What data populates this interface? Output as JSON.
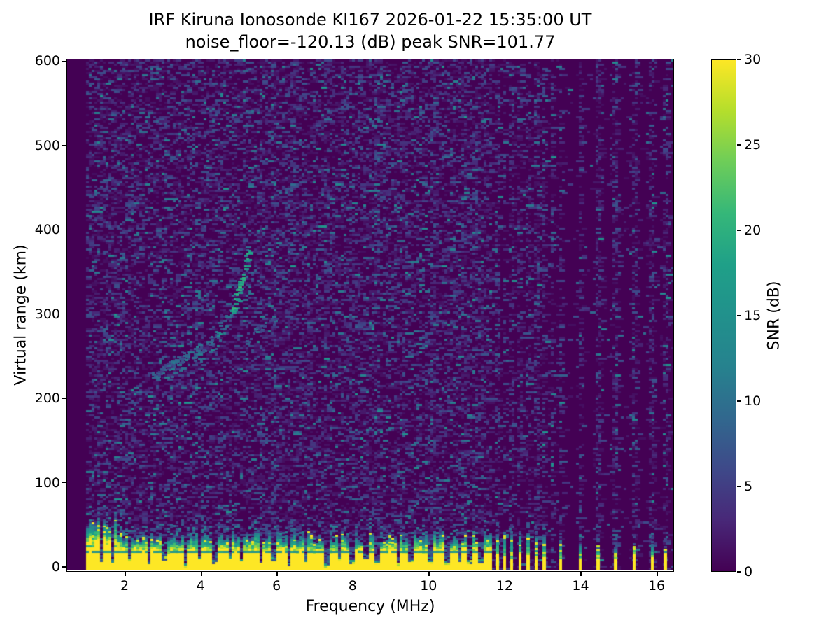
{
  "chart_data": {
    "type": "heatmap",
    "title": "IRF Kiruna Ionosonde KI167 2026-01-22 15:35:00  UT",
    "subtitle": "noise_floor=-120.13 (dB) peak SNR=101.77",
    "station": "KI167",
    "timestamp_ut": "2026-01-22 15:35:00",
    "noise_floor_db": -120.13,
    "peak_snr_db": 101.77,
    "xlabel": "Frequency (MHz)",
    "ylabel": "Virtual range (km)",
    "xlim": [
      0.49,
      16.44
    ],
    "ylim": [
      -4,
      602
    ],
    "xticks": [
      2,
      4,
      6,
      8,
      10,
      12,
      14,
      16
    ],
    "yticks": [
      0,
      100,
      200,
      300,
      400,
      500,
      600
    ],
    "grid": false,
    "colorbar": {
      "label": "SNR (dB)",
      "ticks": [
        0,
        5,
        10,
        15,
        20,
        25,
        30
      ],
      "vmin": 0,
      "vmax": 30,
      "colormap": "viridis",
      "position": "right"
    },
    "viridis_stops": [
      "#440154",
      "#482878",
      "#3e4989",
      "#31688e",
      "#26828e",
      "#21918c",
      "#1fa088",
      "#35b779",
      "#6dcd59",
      "#b4de2c",
      "#fde725"
    ],
    "features": {
      "data_start_mhz": 1.0,
      "ground_clutter_band": {
        "freq_range_mhz": [
          1.0,
          11.66
        ],
        "solid_top_km": 20,
        "transition_top_km": 34,
        "tall_left_until_mhz": 1.75,
        "teal_line_km": 19,
        "green_line_km": 26
      },
      "echo_trace_main": [
        [
          2.72,
          226
        ],
        [
          2.85,
          230
        ],
        [
          3.0,
          235
        ],
        [
          3.15,
          240
        ],
        [
          3.3,
          244
        ],
        [
          3.45,
          248
        ],
        [
          3.6,
          251
        ],
        [
          3.75,
          254
        ],
        [
          3.9,
          258
        ],
        [
          4.05,
          262
        ],
        [
          4.2,
          267
        ],
        [
          4.35,
          273
        ],
        [
          4.5,
          281
        ],
        [
          4.65,
          292
        ],
        [
          4.8,
          305
        ],
        [
          4.9,
          318
        ],
        [
          5.0,
          332
        ],
        [
          5.08,
          345
        ],
        [
          5.15,
          357
        ],
        [
          5.22,
          368
        ],
        [
          5.27,
          376
        ]
      ],
      "echo_trace_split_offset_km": 13,
      "echo_trace_split_range_mhz": [
        3.2,
        4.65
      ],
      "echo_trace_faint_branch": [
        [
          5.25,
          272
        ],
        [
          5.45,
          279
        ],
        [
          5.65,
          286
        ],
        [
          5.85,
          293
        ]
      ],
      "rfi_gap_start_mhz": 11.66,
      "rfi_stripes": [
        {
          "f": 11.77,
          "top_km": 40
        },
        {
          "f": 11.97,
          "top_km": 42
        },
        {
          "f": 12.15,
          "top_km": 40
        },
        {
          "f": 12.37,
          "top_km": 38
        },
        {
          "f": 12.58,
          "top_km": 40
        },
        {
          "f": 12.8,
          "top_km": 38
        },
        {
          "f": 13.0,
          "top_km": 36
        },
        {
          "f": 13.44,
          "top_km": 30
        },
        {
          "f": 13.95,
          "top_km": 28
        },
        {
          "f": 14.42,
          "top_km": 26
        },
        {
          "f": 14.87,
          "top_km": 24
        },
        {
          "f": 15.37,
          "top_km": 26
        },
        {
          "f": 15.85,
          "top_km": 28
        },
        {
          "f": 16.18,
          "top_km": 22
        }
      ],
      "band_notches": [
        [
          1.35,
          8
        ],
        [
          1.65,
          5
        ],
        [
          2.08,
          9
        ],
        [
          2.6,
          6
        ],
        [
          3.0,
          10
        ],
        [
          3.55,
          2
        ],
        [
          3.95,
          9
        ],
        [
          4.35,
          6
        ],
        [
          4.75,
          10
        ],
        [
          5.05,
          7
        ],
        [
          5.55,
          5
        ],
        [
          5.9,
          9
        ],
        [
          6.3,
          3
        ],
        [
          6.75,
          6
        ],
        [
          7.3,
          2
        ],
        [
          7.6,
          9
        ],
        [
          7.95,
          6
        ],
        [
          8.3,
          9
        ],
        [
          8.6,
          5
        ],
        [
          9.15,
          3
        ],
        [
          9.5,
          8
        ],
        [
          10.0,
          6
        ],
        [
          10.45,
          5
        ],
        [
          10.8,
          8
        ],
        [
          11.05,
          6
        ],
        [
          11.35,
          7
        ]
      ],
      "noise_column_freqs_mhz": [
        5.55,
        5.9,
        6.3,
        7.25,
        8.6,
        10.1,
        10.9,
        13.22
      ]
    }
  }
}
